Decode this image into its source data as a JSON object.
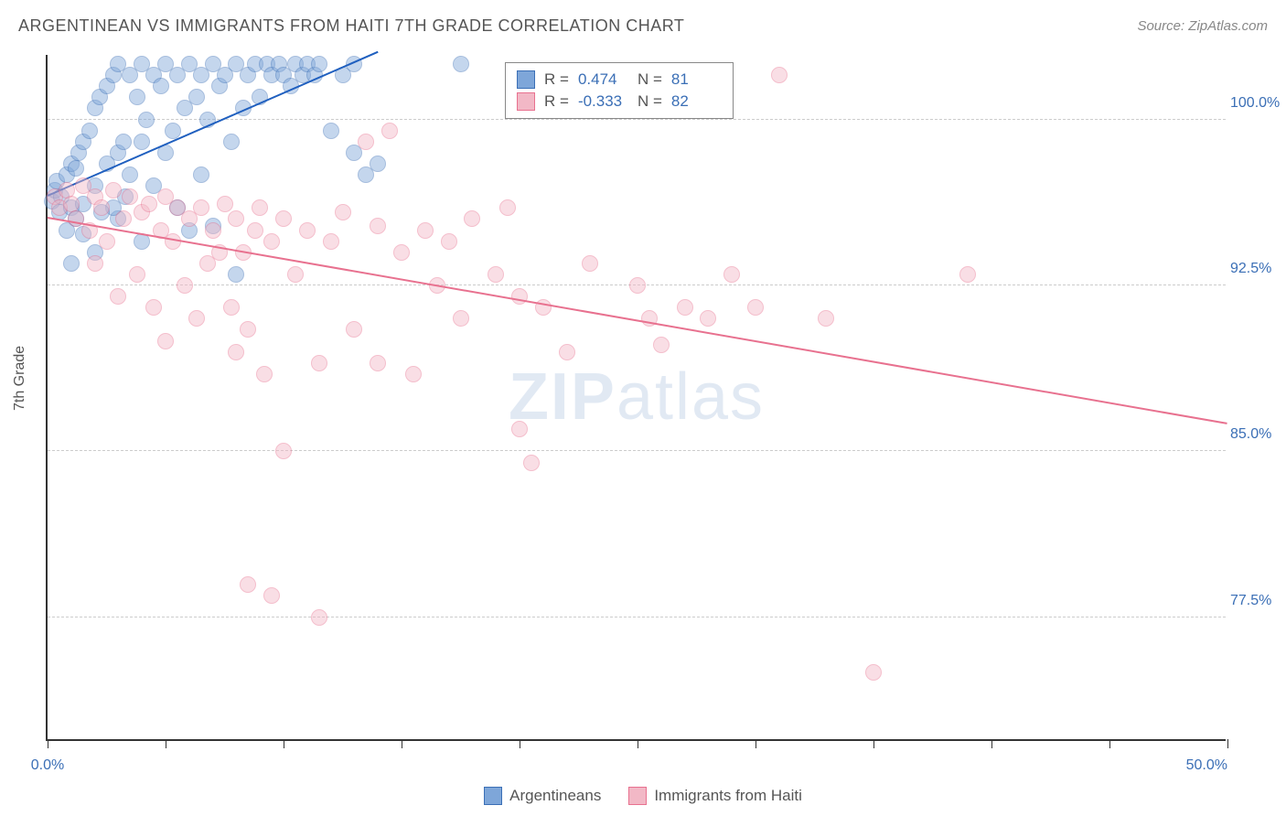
{
  "header": {
    "title": "ARGENTINEAN VS IMMIGRANTS FROM HAITI 7TH GRADE CORRELATION CHART",
    "source": "Source: ZipAtlas.com"
  },
  "chart": {
    "type": "scatter",
    "ylabel": "7th Grade",
    "watermark_zip": "ZIP",
    "watermark_atlas": "atlas",
    "xlim": [
      0,
      50
    ],
    "ylim": [
      72,
      103
    ],
    "x_ticks": [
      0,
      5,
      10,
      15,
      20,
      25,
      30,
      35,
      40,
      45,
      50
    ],
    "x_tick_labels": {
      "0": "0.0%",
      "50": "50.0%"
    },
    "y_gridlines": [
      77.5,
      85.0,
      92.5,
      100.0
    ],
    "y_tick_labels": [
      "77.5%",
      "85.0%",
      "92.5%",
      "100.0%"
    ],
    "background_color": "#ffffff",
    "grid_color": "#cccccc",
    "axis_color": "#333333",
    "tick_label_color": "#3b6fb6",
    "point_radius": 9,
    "point_opacity": 0.45,
    "series": [
      {
        "name": "Argentineans",
        "fill_color": "#7ea6d9",
        "stroke_color": "#3b6fb6",
        "r_label": "R =",
        "r_value": "0.474",
        "n_label": "N =",
        "n_value": "81",
        "trend": {
          "x1": 0,
          "y1": 96.5,
          "x2": 14,
          "y2": 103,
          "color": "#1f5fbf",
          "width": 2
        },
        "points": [
          [
            0.2,
            96.3
          ],
          [
            0.3,
            96.8
          ],
          [
            0.4,
            97.2
          ],
          [
            0.5,
            95.8
          ],
          [
            0.6,
            96.5
          ],
          [
            0.8,
            97.5
          ],
          [
            1.0,
            98.0
          ],
          [
            1.0,
            96.0
          ],
          [
            1.2,
            97.8
          ],
          [
            1.3,
            98.5
          ],
          [
            1.5,
            99.0
          ],
          [
            1.5,
            96.2
          ],
          [
            1.8,
            99.5
          ],
          [
            2.0,
            100.5
          ],
          [
            2.0,
            97.0
          ],
          [
            2.2,
            101.0
          ],
          [
            2.5,
            101.5
          ],
          [
            2.5,
            98.0
          ],
          [
            2.8,
            102.0
          ],
          [
            3.0,
            102.5
          ],
          [
            3.0,
            98.5
          ],
          [
            3.2,
            99.0
          ],
          [
            3.5,
            102.0
          ],
          [
            3.5,
            97.5
          ],
          [
            3.8,
            101.0
          ],
          [
            4.0,
            102.5
          ],
          [
            4.0,
            99.0
          ],
          [
            4.2,
            100.0
          ],
          [
            4.5,
            102.0
          ],
          [
            4.5,
            97.0
          ],
          [
            4.8,
            101.5
          ],
          [
            5.0,
            102.5
          ],
          [
            5.0,
            98.5
          ],
          [
            5.3,
            99.5
          ],
          [
            5.5,
            102.0
          ],
          [
            5.5,
            96.0
          ],
          [
            5.8,
            100.5
          ],
          [
            6.0,
            102.5
          ],
          [
            6.0,
            95.0
          ],
          [
            6.3,
            101.0
          ],
          [
            6.5,
            102.0
          ],
          [
            6.5,
            97.5
          ],
          [
            6.8,
            100.0
          ],
          [
            7.0,
            102.5
          ],
          [
            7.0,
            95.2
          ],
          [
            7.3,
            101.5
          ],
          [
            7.5,
            102.0
          ],
          [
            7.8,
            99.0
          ],
          [
            8.0,
            102.5
          ],
          [
            8.0,
            93.0
          ],
          [
            8.3,
            100.5
          ],
          [
            8.5,
            102.0
          ],
          [
            8.8,
            102.5
          ],
          [
            9.0,
            101.0
          ],
          [
            9.3,
            102.5
          ],
          [
            9.5,
            102.0
          ],
          [
            9.8,
            102.5
          ],
          [
            10.0,
            102.0
          ],
          [
            10.3,
            101.5
          ],
          [
            10.5,
            102.5
          ],
          [
            10.8,
            102.0
          ],
          [
            11.0,
            102.5
          ],
          [
            11.3,
            102.0
          ],
          [
            11.5,
            102.5
          ],
          [
            12.0,
            99.5
          ],
          [
            12.5,
            102.0
          ],
          [
            13.0,
            98.5
          ],
          [
            13.0,
            102.5
          ],
          [
            13.5,
            97.5
          ],
          [
            14.0,
            98.0
          ],
          [
            17.5,
            102.5
          ],
          [
            1.0,
            93.5
          ],
          [
            2.0,
            94.0
          ],
          [
            3.0,
            95.5
          ],
          [
            1.5,
            94.8
          ],
          [
            2.8,
            96.0
          ],
          [
            4.0,
            94.5
          ],
          [
            0.8,
            95.0
          ],
          [
            1.2,
            95.5
          ],
          [
            2.3,
            95.8
          ],
          [
            3.3,
            96.5
          ]
        ]
      },
      {
        "name": "Immigrants from Haiti",
        "fill_color": "#f2b8c6",
        "stroke_color": "#e8718f",
        "r_label": "R =",
        "r_value": "-0.333",
        "n_label": "N =",
        "n_value": "82",
        "trend": {
          "x1": 0,
          "y1": 95.5,
          "x2": 50,
          "y2": 86.2,
          "color": "#e8718f",
          "width": 2
        },
        "points": [
          [
            0.3,
            96.5
          ],
          [
            0.5,
            96.0
          ],
          [
            0.8,
            96.8
          ],
          [
            1.0,
            96.2
          ],
          [
            1.2,
            95.5
          ],
          [
            1.5,
            97.0
          ],
          [
            1.8,
            95.0
          ],
          [
            2.0,
            96.5
          ],
          [
            2.0,
            93.5
          ],
          [
            2.3,
            96.0
          ],
          [
            2.5,
            94.5
          ],
          [
            2.8,
            96.8
          ],
          [
            3.0,
            92.0
          ],
          [
            3.2,
            95.5
          ],
          [
            3.5,
            96.5
          ],
          [
            3.8,
            93.0
          ],
          [
            4.0,
            95.8
          ],
          [
            4.3,
            96.2
          ],
          [
            4.5,
            91.5
          ],
          [
            4.8,
            95.0
          ],
          [
            5.0,
            96.5
          ],
          [
            5.0,
            90.0
          ],
          [
            5.3,
            94.5
          ],
          [
            5.5,
            96.0
          ],
          [
            5.8,
            92.5
          ],
          [
            6.0,
            95.5
          ],
          [
            6.3,
            91.0
          ],
          [
            6.5,
            96.0
          ],
          [
            6.8,
            93.5
          ],
          [
            7.0,
            95.0
          ],
          [
            7.3,
            94.0
          ],
          [
            7.5,
            96.2
          ],
          [
            7.8,
            91.5
          ],
          [
            8.0,
            95.5
          ],
          [
            8.0,
            89.5
          ],
          [
            8.3,
            94.0
          ],
          [
            8.5,
            90.5
          ],
          [
            8.8,
            95.0
          ],
          [
            9.0,
            96.0
          ],
          [
            9.2,
            88.5
          ],
          [
            9.5,
            94.5
          ],
          [
            10.0,
            95.5
          ],
          [
            10.0,
            85.0
          ],
          [
            10.5,
            93.0
          ],
          [
            11.0,
            95.0
          ],
          [
            11.5,
            89.0
          ],
          [
            12.0,
            94.5
          ],
          [
            12.5,
            95.8
          ],
          [
            13.0,
            90.5
          ],
          [
            13.5,
            99.0
          ],
          [
            14.0,
            95.2
          ],
          [
            14.0,
            89.0
          ],
          [
            14.5,
            99.5
          ],
          [
            15.0,
            94.0
          ],
          [
            15.5,
            88.5
          ],
          [
            16.0,
            95.0
          ],
          [
            16.5,
            92.5
          ],
          [
            17.0,
            94.5
          ],
          [
            17.5,
            91.0
          ],
          [
            18.0,
            95.5
          ],
          [
            19.0,
            93.0
          ],
          [
            19.5,
            96.0
          ],
          [
            20.0,
            92.0
          ],
          [
            20.5,
            84.5
          ],
          [
            21.0,
            91.5
          ],
          [
            22.0,
            89.5
          ],
          [
            23.0,
            93.5
          ],
          [
            25.0,
            92.5
          ],
          [
            25.5,
            91.0
          ],
          [
            26.0,
            89.8
          ],
          [
            27.0,
            91.5
          ],
          [
            28.0,
            91.0
          ],
          [
            29.0,
            93.0
          ],
          [
            30.0,
            91.5
          ],
          [
            31.0,
            102.0
          ],
          [
            33.0,
            91.0
          ],
          [
            35.0,
            75.0
          ],
          [
            39.0,
            93.0
          ],
          [
            9.5,
            78.5
          ],
          [
            11.5,
            77.5
          ],
          [
            8.5,
            79.0
          ],
          [
            20.0,
            86.0
          ]
        ]
      }
    ]
  }
}
